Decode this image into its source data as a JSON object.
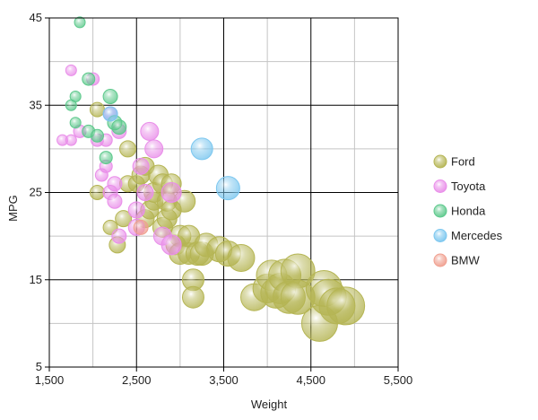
{
  "chart_data": {
    "type": "scatter",
    "subtype": "bubble",
    "xlabel": "Weight",
    "ylabel": "MPG",
    "xlim": [
      1500,
      5500
    ],
    "ylim": [
      5,
      45
    ],
    "x_ticks": [
      "1,500",
      "2,500",
      "3,500",
      "4,500",
      "5,500"
    ],
    "y_ticks": [
      "5",
      "15",
      "25",
      "35",
      "45"
    ],
    "grid": true,
    "legend_position": "right",
    "series": [
      {
        "name": "Ford",
        "color": "#b5b554",
        "points": [
          [
            2050,
            34.5
          ],
          [
            2050,
            25
          ],
          [
            2200,
            21
          ],
          [
            2280,
            19
          ],
          [
            2350,
            22
          ],
          [
            2400,
            26
          ],
          [
            2400,
            30
          ],
          [
            2500,
            26
          ],
          [
            2550,
            27
          ],
          [
            2600,
            22
          ],
          [
            2600,
            28
          ],
          [
            2650,
            23
          ],
          [
            2700,
            24
          ],
          [
            2700,
            25
          ],
          [
            2750,
            27
          ],
          [
            2800,
            26
          ],
          [
            2800,
            21
          ],
          [
            2850,
            22
          ],
          [
            2850,
            24
          ],
          [
            2900,
            26
          ],
          [
            2900,
            23
          ],
          [
            2950,
            19
          ],
          [
            3000,
            20
          ],
          [
            3000,
            18
          ],
          [
            3050,
            24
          ],
          [
            3100,
            18
          ],
          [
            3100,
            20
          ],
          [
            3150,
            15
          ],
          [
            3150,
            13
          ],
          [
            3200,
            18
          ],
          [
            3250,
            18
          ],
          [
            3300,
            19
          ],
          [
            3450,
            18.5
          ],
          [
            3550,
            18
          ],
          [
            3700,
            17.5
          ],
          [
            3850,
            13
          ],
          [
            4000,
            14
          ],
          [
            4050,
            15.5
          ],
          [
            4100,
            13.5
          ],
          [
            4150,
            14
          ],
          [
            4200,
            15.5
          ],
          [
            4250,
            13
          ],
          [
            4350,
            16
          ],
          [
            4350,
            13
          ],
          [
            4600,
            10
          ],
          [
            4650,
            14
          ],
          [
            4700,
            13
          ],
          [
            4800,
            12
          ],
          [
            4900,
            12
          ]
        ],
        "sizes": [
          8,
          8,
          8,
          9,
          9,
          9,
          9,
          9,
          10,
          10,
          10,
          10,
          10,
          11,
          11,
          11,
          11,
          11,
          11,
          11,
          11,
          11,
          12,
          12,
          12,
          12,
          12,
          12,
          12,
          13,
          13,
          13,
          14,
          14,
          15,
          15,
          16,
          17,
          17,
          17,
          18,
          18,
          19,
          19,
          20,
          20,
          20,
          20,
          21
        ]
      },
      {
        "name": "Toyota",
        "color": "#e98ee9",
        "points": [
          [
            1650,
            31
          ],
          [
            1750,
            39
          ],
          [
            1750,
            31
          ],
          [
            1850,
            32
          ],
          [
            2000,
            38
          ],
          [
            2050,
            31
          ],
          [
            2100,
            27
          ],
          [
            2150,
            28
          ],
          [
            2150,
            31
          ],
          [
            2200,
            34
          ],
          [
            2200,
            25
          ],
          [
            2250,
            26
          ],
          [
            2250,
            24
          ],
          [
            2300,
            32
          ],
          [
            2300,
            20
          ],
          [
            2500,
            23
          ],
          [
            2500,
            21
          ],
          [
            2550,
            28
          ],
          [
            2600,
            25
          ],
          [
            2650,
            32
          ],
          [
            2700,
            30
          ],
          [
            2800,
            20
          ],
          [
            2900,
            25
          ],
          [
            2900,
            19
          ]
        ],
        "sizes": [
          6,
          6,
          6,
          7,
          7,
          7,
          7,
          7,
          7,
          8,
          8,
          8,
          8,
          8,
          8,
          9,
          9,
          9,
          9,
          10,
          10,
          10,
          11,
          11
        ]
      },
      {
        "name": "Honda",
        "color": "#5dc98c",
        "points": [
          [
            1750,
            35
          ],
          [
            1800,
            33
          ],
          [
            1800,
            36
          ],
          [
            1850,
            44.5
          ],
          [
            1950,
            32
          ],
          [
            1950,
            38
          ],
          [
            2050,
            31.5
          ],
          [
            2150,
            29
          ],
          [
            2200,
            36
          ],
          [
            2250,
            33
          ],
          [
            2300,
            32.5
          ]
        ],
        "sizes": [
          6,
          6,
          6,
          6,
          7,
          7,
          7,
          7,
          8,
          8,
          8
        ]
      },
      {
        "name": "Mercedes",
        "color": "#7cc7ef",
        "points": [
          [
            2200,
            34
          ],
          [
            3250,
            30
          ],
          [
            3550,
            25.5
          ]
        ],
        "sizes": [
          8,
          12,
          13
        ]
      },
      {
        "name": "BMW",
        "color": "#f0a090",
        "points": [
          [
            2550,
            21
          ]
        ],
        "sizes": [
          8
        ]
      }
    ]
  }
}
